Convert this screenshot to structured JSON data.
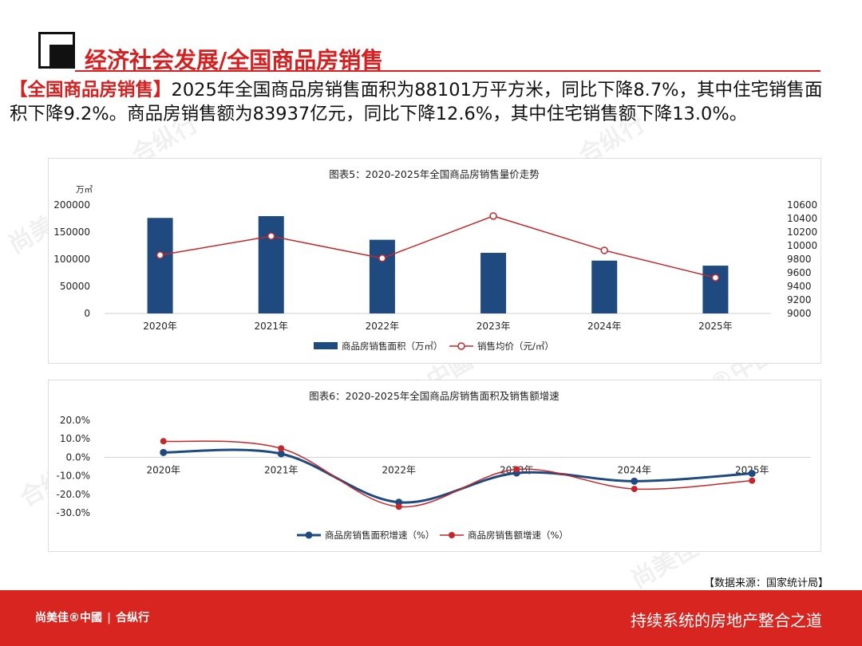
{
  "header": {
    "title": "经济社会发展/全国商品房销售"
  },
  "summary": {
    "highlight": "【全国商品房销售】",
    "text": "2025年全国商品房销售面积为88101万平方米，同比下降8.7%，其中住宅销售面积下降9.2%。商品房销售额为83937亿元，同比下降12.6%，其中住宅销售额下降13.0%。"
  },
  "source": "【数据来源：国家统计局】",
  "footer": {
    "brand_left": "尚美佳®中國",
    "brand_right": "合纵行",
    "slogan": "持续系统的房地产整合之道"
  },
  "watermark": {
    "text1": "尚美佳®中國",
    "text2": "合纵行"
  },
  "colors": {
    "accent": "#d42020",
    "bar": "#1f4a7f",
    "line_red": "#c0282d",
    "line_blue": "#1f4a7f",
    "footer": "#d8251f"
  },
  "chart_data": [
    {
      "type": "bar",
      "title": "图表5：2020-2025年全国商品房销售量价走势",
      "ylabel": "万㎡",
      "categories": [
        "2020年",
        "2021年",
        "2022年",
        "2023年",
        "2024年",
        "2025年"
      ],
      "y_ticks": [
        "0",
        "50000",
        "100000",
        "150000",
        "200000"
      ],
      "y2_ticks": [
        "9000",
        "9200",
        "9400",
        "9600",
        "9800",
        "10000",
        "10200",
        "10400",
        "10600"
      ],
      "ylim": [
        0,
        200000
      ],
      "y2lim": [
        9000,
        10600
      ],
      "series": [
        {
          "name": "商品房销售面积（万㎡）",
          "type": "bar",
          "axis": "left",
          "values": [
            176086,
            179433,
            135837,
            111735,
            97385,
            88101
          ]
        },
        {
          "name": "销售均价（元/㎡）",
          "type": "line",
          "axis": "right",
          "values": [
            9860,
            10140,
            9814,
            10437,
            9930,
            9527
          ]
        }
      ],
      "legend": "bottom",
      "grid": false
    },
    {
      "type": "line",
      "title": "图表6：2020-2025年全国商品房销售面积及销售额增速",
      "categories": [
        "2020年",
        "2021年",
        "2022年",
        "2023年",
        "2024年",
        "2025年"
      ],
      "y_ticks": [
        "20.0%",
        "10.0%",
        "0.0%",
        "-10.0%",
        "-20.0%",
        "-30.0%"
      ],
      "ylim": [
        -30,
        20
      ],
      "series": [
        {
          "name": "商品房销售面积增速（%）",
          "values": [
            2.6,
            1.9,
            -24.3,
            -8.5,
            -12.9,
            -8.7
          ]
        },
        {
          "name": "商品房销售额增速（%）",
          "values": [
            8.7,
            4.8,
            -26.7,
            -6.5,
            -17.1,
            -12.6
          ]
        }
      ],
      "legend": "bottom",
      "grid": false
    }
  ]
}
